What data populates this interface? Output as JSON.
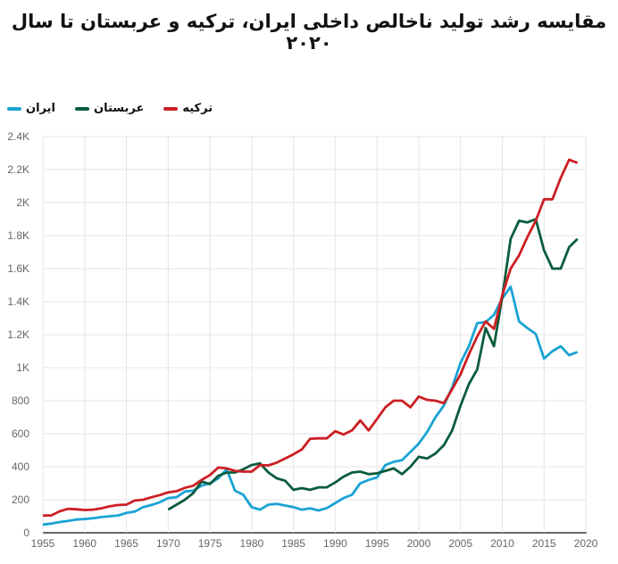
{
  "chart_data": {
    "type": "line",
    "title": "مقایسه رشد تولید ناخالص داخلی ایران، ترکیه و عربستان تا سال ۲۰۲۰",
    "xlabel": "",
    "ylabel": "",
    "xlim": [
      1955,
      2020
    ],
    "ylim": [
      0,
      2400
    ],
    "xticks": [
      "1955",
      "1960",
      "1965",
      "1970",
      "1975",
      "1980",
      "1985",
      "1990",
      "1995",
      "2000",
      "2005",
      "2010",
      "2015",
      "2020"
    ],
    "yticks": [
      "0",
      "200",
      "400",
      "600",
      "800",
      "1K",
      "1.2K",
      "1.4K",
      "1.6K",
      "1.8K",
      "2K",
      "2.2K",
      "2.4K"
    ],
    "grid": true,
    "legend_position": "top-left",
    "series": [
      {
        "name": "ایران",
        "color": "#1aa3d4",
        "start": 1955,
        "values": [
          50,
          55,
          65,
          72,
          80,
          83,
          88,
          95,
          100,
          105,
          120,
          128,
          155,
          168,
          185,
          210,
          215,
          250,
          255,
          285,
          300,
          330,
          385,
          255,
          230,
          155,
          140,
          170,
          175,
          165,
          155,
          140,
          148,
          135,
          150,
          180,
          210,
          230,
          300,
          320,
          335,
          410,
          430,
          440,
          490,
          540,
          610,
          700,
          770,
          880,
          1030,
          1130,
          1270,
          1275,
          1320,
          1420,
          1490,
          1280,
          1240,
          1205,
          1055,
          1100,
          1130,
          1075,
          1095
        ]
      },
      {
        "name": "عربستان",
        "color": "#0a5c3c",
        "start": 1970,
        "values": [
          140,
          170,
          200,
          240,
          310,
          295,
          345,
          365,
          365,
          385,
          410,
          420,
          365,
          330,
          315,
          260,
          270,
          260,
          275,
          275,
          305,
          340,
          365,
          370,
          355,
          360,
          375,
          390,
          355,
          400,
          460,
          450,
          480,
          530,
          620,
          770,
          900,
          990,
          1240,
          1130,
          1430,
          1780,
          1890,
          1880,
          1900,
          1710,
          1600,
          1600,
          1730,
          1780
        ]
      },
      {
        "name": "ترکیه",
        "color": "#cc1f24",
        "start": 1955,
        "values": [
          105,
          105,
          130,
          145,
          142,
          138,
          140,
          148,
          160,
          168,
          170,
          195,
          200,
          215,
          228,
          245,
          252,
          272,
          285,
          320,
          350,
          395,
          390,
          375,
          370,
          370,
          410,
          408,
          425,
          450,
          475,
          505,
          570,
          572,
          572,
          615,
          595,
          620,
          680,
          620,
          690,
          760,
          800,
          800,
          760,
          825,
          805,
          800,
          785,
          870,
          960,
          1080,
          1190,
          1280,
          1235,
          1440,
          1600,
          1680,
          1790,
          1890,
          2020,
          2020,
          2150,
          2260,
          2240
        ]
      }
    ]
  }
}
